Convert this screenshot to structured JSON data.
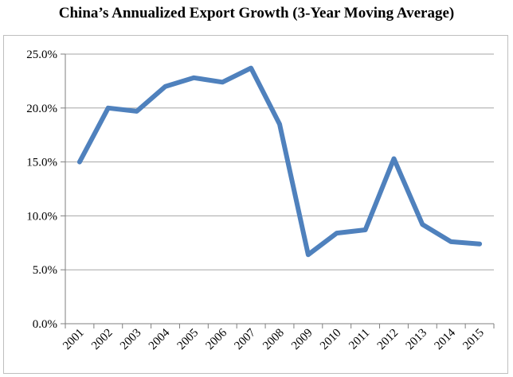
{
  "chart_data": {
    "type": "line",
    "title": "China’s Annualized Export Growth (3-Year Moving Average)",
    "xlabel": "",
    "ylabel": "",
    "categories": [
      "2001",
      "2002",
      "2003",
      "2004",
      "2005",
      "2006",
      "2007",
      "2008",
      "2009",
      "2010",
      "2011",
      "2012",
      "2013",
      "2014",
      "2015"
    ],
    "series": [
      {
        "values": [
          15.0,
          20.0,
          19.7,
          22.0,
          22.8,
          22.4,
          23.7,
          18.5,
          6.4,
          8.4,
          8.7,
          15.3,
          9.2,
          7.6,
          7.4
        ],
        "color": "#4f81bd"
      }
    ],
    "ylim": [
      0,
      25
    ],
    "yticks": [
      0,
      5,
      10,
      15,
      20,
      25
    ],
    "ytick_labels": [
      "0.0%",
      "5.0%",
      "10.0%",
      "15.0%",
      "20.0%",
      "25.0%"
    ],
    "grid": true,
    "legend": "none",
    "gridline_color": "#a6a6a6"
  }
}
